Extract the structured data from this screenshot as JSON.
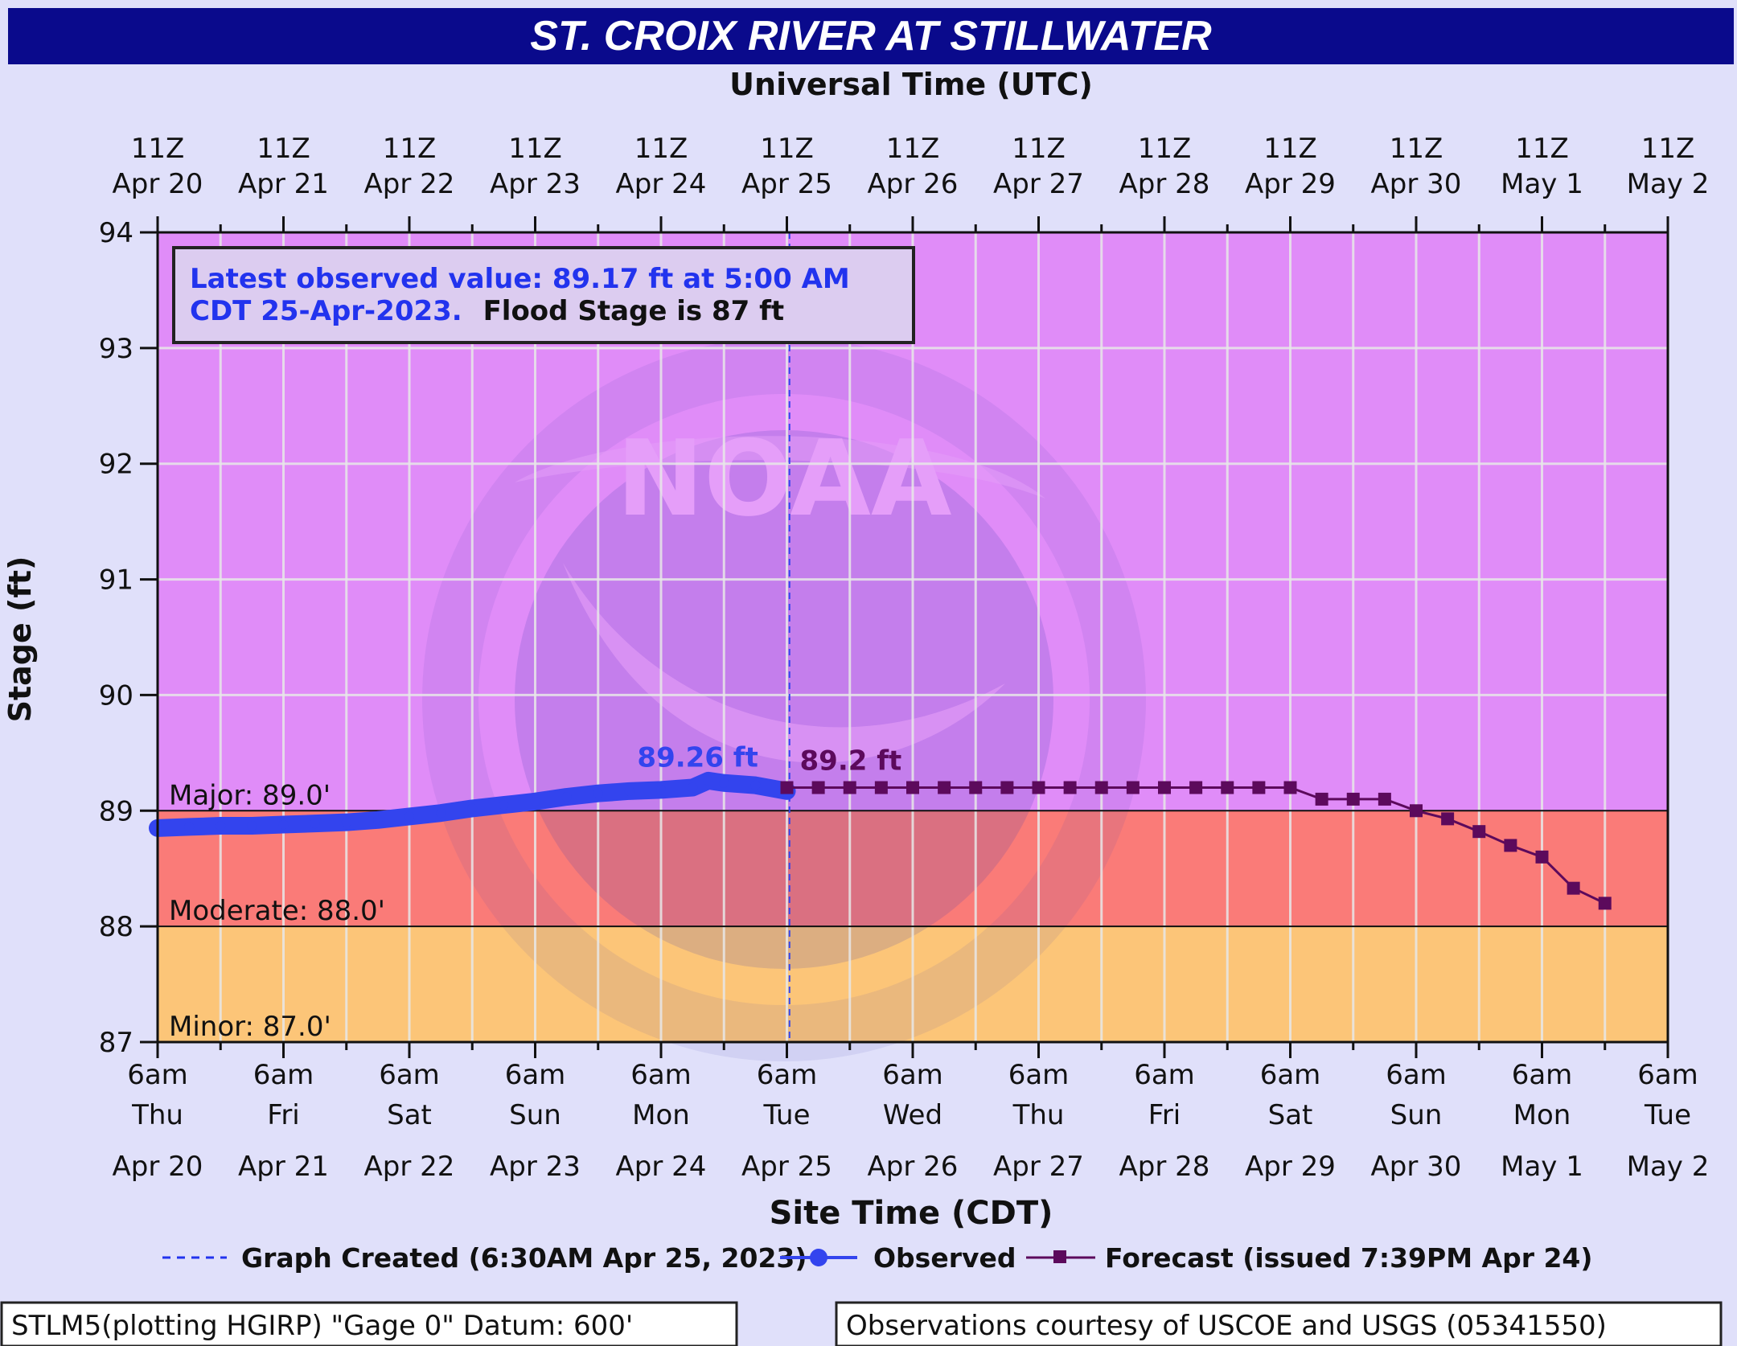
{
  "title": "ST. CROIX RIVER AT STILLWATER",
  "top_axis_label": "Universal Time (UTC)",
  "bottom_axis_label": "Site Time (CDT)",
  "y_axis_label": "Stage (ft)",
  "info_box": {
    "line1": "Latest observed value: 89.17 ft at 5:00 AM",
    "line2_blue": "CDT 25-Apr-2023.",
    "line2_black": "Flood Stage is 87 ft"
  },
  "legend": {
    "created": "Graph Created (6:30AM Apr 25, 2023)",
    "observed": "Observed",
    "forecast": "Forecast (issued 7:39PM Apr 24)"
  },
  "footer_left": "STLM5(plotting HGIRP) \"Gage 0\" Datum: 600'",
  "footer_right": "Observations courtesy of USCOE and USGS (05341550)",
  "colors": {
    "major": "#e08cf8",
    "moderate": "#fa7b78",
    "minor": "#fcc578",
    "observed": "#3344ee",
    "forecast": "#5c0a5c",
    "title_bg": "#0a0a8c",
    "info_blue": "#2233ee"
  },
  "chart_data": {
    "type": "line",
    "title": "ST. CROIX RIVER AT STILLWATER",
    "ylabel": "Stage (ft)",
    "xlabel": "Site Time (CDT)",
    "ylim": [
      87,
      94
    ],
    "yticks": [
      "87",
      "88",
      "89",
      "90",
      "91",
      "92",
      "93",
      "94"
    ],
    "x_range_hours": [
      0,
      288
    ],
    "bottom_ticks": [
      {
        "t": "6am",
        "d": "Thu",
        "date": "Apr 20"
      },
      {
        "t": "6am",
        "d": "Fri",
        "date": "Apr 21"
      },
      {
        "t": "6am",
        "d": "Sat",
        "date": "Apr 22"
      },
      {
        "t": "6am",
        "d": "Sun",
        "date": "Apr 23"
      },
      {
        "t": "6am",
        "d": "Mon",
        "date": "Apr 24"
      },
      {
        "t": "6am",
        "d": "Tue",
        "date": "Apr 25"
      },
      {
        "t": "6am",
        "d": "Wed",
        "date": "Apr 26"
      },
      {
        "t": "6am",
        "d": "Thu",
        "date": "Apr 27"
      },
      {
        "t": "6am",
        "d": "Fri",
        "date": "Apr 28"
      },
      {
        "t": "6am",
        "d": "Sat",
        "date": "Apr 29"
      },
      {
        "t": "6am",
        "d": "Sun",
        "date": "Apr 30"
      },
      {
        "t": "6am",
        "d": "Mon",
        "date": "May 1"
      },
      {
        "t": "6am",
        "d": "Tue",
        "date": "May 2"
      }
    ],
    "top_ticks": [
      {
        "t": "11Z",
        "date": "Apr 20"
      },
      {
        "t": "11Z",
        "date": "Apr 21"
      },
      {
        "t": "11Z",
        "date": "Apr 22"
      },
      {
        "t": "11Z",
        "date": "Apr 23"
      },
      {
        "t": "11Z",
        "date": "Apr 24"
      },
      {
        "t": "11Z",
        "date": "Apr 25"
      },
      {
        "t": "11Z",
        "date": "Apr 26"
      },
      {
        "t": "11Z",
        "date": "Apr 27"
      },
      {
        "t": "11Z",
        "date": "Apr 28"
      },
      {
        "t": "11Z",
        "date": "Apr 29"
      },
      {
        "t": "11Z",
        "date": "Apr 30"
      },
      {
        "t": "11Z",
        "date": "May 1"
      },
      {
        "t": "11Z",
        "date": "May 2"
      }
    ],
    "flood_categories": [
      {
        "name": "Major",
        "label": "Major: 89.0'",
        "value": 89.0
      },
      {
        "name": "Moderate",
        "label": "Moderate: 88.0'",
        "value": 88.0
      },
      {
        "name": "Minor",
        "label": "Minor: 87.0'",
        "value": 87.0
      }
    ],
    "created_hours": 120.5,
    "series": [
      {
        "name": "Observed",
        "peak_label": "89.26 ft",
        "peak_label_x_hours": 103,
        "peak_label_y": 89.38,
        "x_hours": [
          0,
          6,
          12,
          18,
          24,
          30,
          36,
          42,
          48,
          54,
          60,
          66,
          72,
          78,
          84,
          90,
          96,
          102,
          105,
          108,
          114,
          120
        ],
        "y": [
          88.85,
          88.86,
          88.87,
          88.87,
          88.88,
          88.89,
          88.9,
          88.92,
          88.95,
          88.98,
          89.02,
          89.05,
          89.08,
          89.12,
          89.15,
          89.17,
          89.18,
          89.2,
          89.26,
          89.24,
          89.22,
          89.17
        ]
      },
      {
        "name": "Forecast",
        "first_label": "89.2 ft",
        "x_hours": [
          120,
          126,
          132,
          138,
          144,
          150,
          156,
          162,
          168,
          174,
          180,
          186,
          192,
          198,
          204,
          210,
          216,
          222,
          228,
          234,
          240,
          246,
          252,
          258,
          264,
          270,
          276
        ],
        "y": [
          89.2,
          89.2,
          89.2,
          89.2,
          89.2,
          89.2,
          89.2,
          89.2,
          89.2,
          89.2,
          89.2,
          89.2,
          89.2,
          89.2,
          89.2,
          89.2,
          89.2,
          89.1,
          89.1,
          89.1,
          89.0,
          88.93,
          88.82,
          88.7,
          88.6,
          88.33,
          88.2
        ]
      }
    ]
  }
}
